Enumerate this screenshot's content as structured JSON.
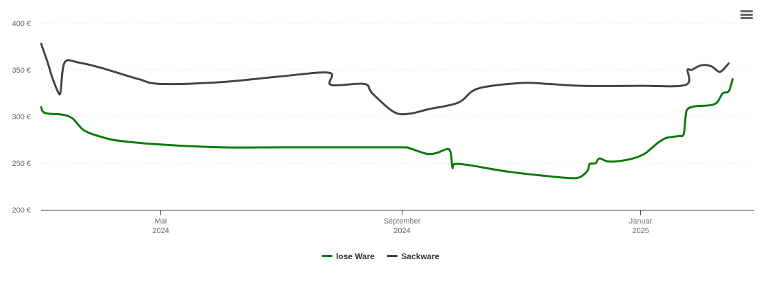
{
  "chart_data": {
    "type": "line",
    "y_unit": "€",
    "ylim": [
      200,
      400
    ],
    "yticks": [
      "200 €",
      "250 €",
      "300 €",
      "350 €",
      "400 €"
    ],
    "x_range": [
      "2024-03-01",
      "2025-02-28"
    ],
    "xticks": [
      {
        "date": "2024-05-01",
        "month": "Mai",
        "year": "2024"
      },
      {
        "date": "2024-09-01",
        "month": "September",
        "year": "2024"
      },
      {
        "date": "2025-01-01",
        "month": "Januar",
        "year": "2025"
      }
    ],
    "grid": "horizontal",
    "legend_position": "bottom-center",
    "series": [
      {
        "name": "lose Ware",
        "color": "#0a7a0a",
        "points": [
          [
            "2024-03-01",
            310
          ],
          [
            "2024-03-02",
            305
          ],
          [
            "2024-03-05",
            303
          ],
          [
            "2024-03-12",
            302
          ],
          [
            "2024-03-17",
            298
          ],
          [
            "2024-03-23",
            285
          ],
          [
            "2024-04-01",
            278
          ],
          [
            "2024-04-10",
            274
          ],
          [
            "2024-05-01",
            270
          ],
          [
            "2024-06-01",
            267
          ],
          [
            "2024-07-01",
            267
          ],
          [
            "2024-08-01",
            267
          ],
          [
            "2024-09-01",
            267
          ],
          [
            "2024-09-05",
            266
          ],
          [
            "2024-09-14",
            260
          ],
          [
            "2024-09-19",
            261
          ],
          [
            "2024-09-24",
            265
          ],
          [
            "2024-09-26",
            262
          ],
          [
            "2024-09-27",
            245
          ],
          [
            "2024-09-28",
            249
          ],
          [
            "2024-10-05",
            248
          ],
          [
            "2024-10-25",
            241
          ],
          [
            "2024-11-15",
            236
          ],
          [
            "2024-11-26",
            234
          ],
          [
            "2024-12-01",
            235
          ],
          [
            "2024-12-05",
            242
          ],
          [
            "2024-12-06",
            249
          ],
          [
            "2024-12-09",
            250
          ],
          [
            "2024-12-11",
            255
          ],
          [
            "2024-12-15",
            252
          ],
          [
            "2024-12-20",
            252
          ],
          [
            "2024-12-28",
            255
          ],
          [
            "2025-01-03",
            260
          ],
          [
            "2025-01-06",
            265
          ],
          [
            "2025-01-10",
            272
          ],
          [
            "2025-01-14",
            277
          ],
          [
            "2025-01-20",
            279
          ],
          [
            "2025-01-23",
            281
          ],
          [
            "2025-01-24",
            300
          ],
          [
            "2025-01-25",
            308
          ],
          [
            "2025-01-29",
            311
          ],
          [
            "2025-02-05",
            312
          ],
          [
            "2025-02-09",
            315
          ],
          [
            "2025-02-12",
            325
          ],
          [
            "2025-02-15",
            327
          ],
          [
            "2025-02-17",
            340
          ]
        ]
      },
      {
        "name": "Sackware",
        "color": "#444444",
        "points": [
          [
            "2024-03-01",
            378
          ],
          [
            "2024-03-04",
            360
          ],
          [
            "2024-03-07",
            340
          ],
          [
            "2024-03-10",
            325
          ],
          [
            "2024-03-11",
            328
          ],
          [
            "2024-03-13",
            358
          ],
          [
            "2024-03-20",
            358
          ],
          [
            "2024-04-01",
            352
          ],
          [
            "2024-04-20",
            340
          ],
          [
            "2024-05-01",
            335
          ],
          [
            "2024-06-01",
            337
          ],
          [
            "2024-07-01",
            343
          ],
          [
            "2024-07-26",
            347
          ],
          [
            "2024-07-27",
            334
          ],
          [
            "2024-08-13",
            335
          ],
          [
            "2024-08-17",
            325
          ],
          [
            "2024-08-28",
            305
          ],
          [
            "2024-09-05",
            303
          ],
          [
            "2024-09-15",
            308
          ],
          [
            "2024-09-30",
            315
          ],
          [
            "2024-10-10",
            330
          ],
          [
            "2024-11-01",
            336
          ],
          [
            "2024-11-15",
            335
          ],
          [
            "2024-12-01",
            333
          ],
          [
            "2025-01-01",
            333
          ],
          [
            "2025-01-24",
            334
          ],
          [
            "2025-01-25",
            350
          ],
          [
            "2025-01-27",
            350
          ],
          [
            "2025-02-01",
            355
          ],
          [
            "2025-02-06",
            354
          ],
          [
            "2025-02-10",
            348
          ],
          [
            "2025-02-12",
            350
          ],
          [
            "2025-02-15",
            357
          ]
        ]
      }
    ]
  }
}
